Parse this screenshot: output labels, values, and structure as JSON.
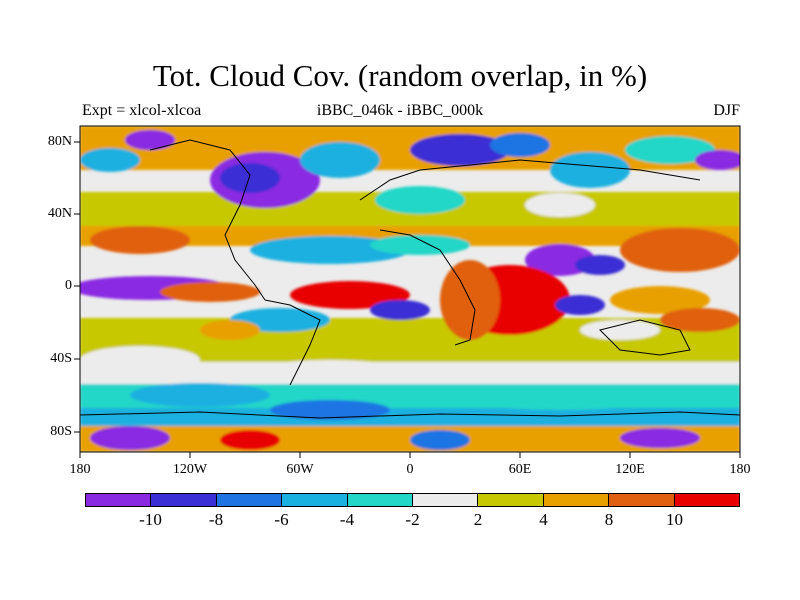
{
  "title": "Tot. Cloud Cov. (random overlap, in %)",
  "left_subtitle": "Expt = xlcol-xlcoa",
  "center_subtitle": "iBBC_046k - iBBC_000k",
  "right_subtitle": "DJF",
  "x_ticks": [
    "180",
    "120W",
    "60W",
    "0",
    "60E",
    "120E",
    "180"
  ],
  "y_ticks": [
    "80N",
    "40N",
    "0",
    "40S",
    "80S"
  ],
  "colorbar": {
    "colors": [
      "#8a2be2",
      "#3a2fd4",
      "#1e74e3",
      "#1ab0e0",
      "#22d6c8",
      "#ececec",
      "#c8c800",
      "#e8a000",
      "#e06010",
      "#e80000"
    ],
    "labels": [
      "-10",
      "-8",
      "-6",
      "-4",
      "-2",
      "2",
      "4",
      "8",
      "10"
    ]
  }
}
